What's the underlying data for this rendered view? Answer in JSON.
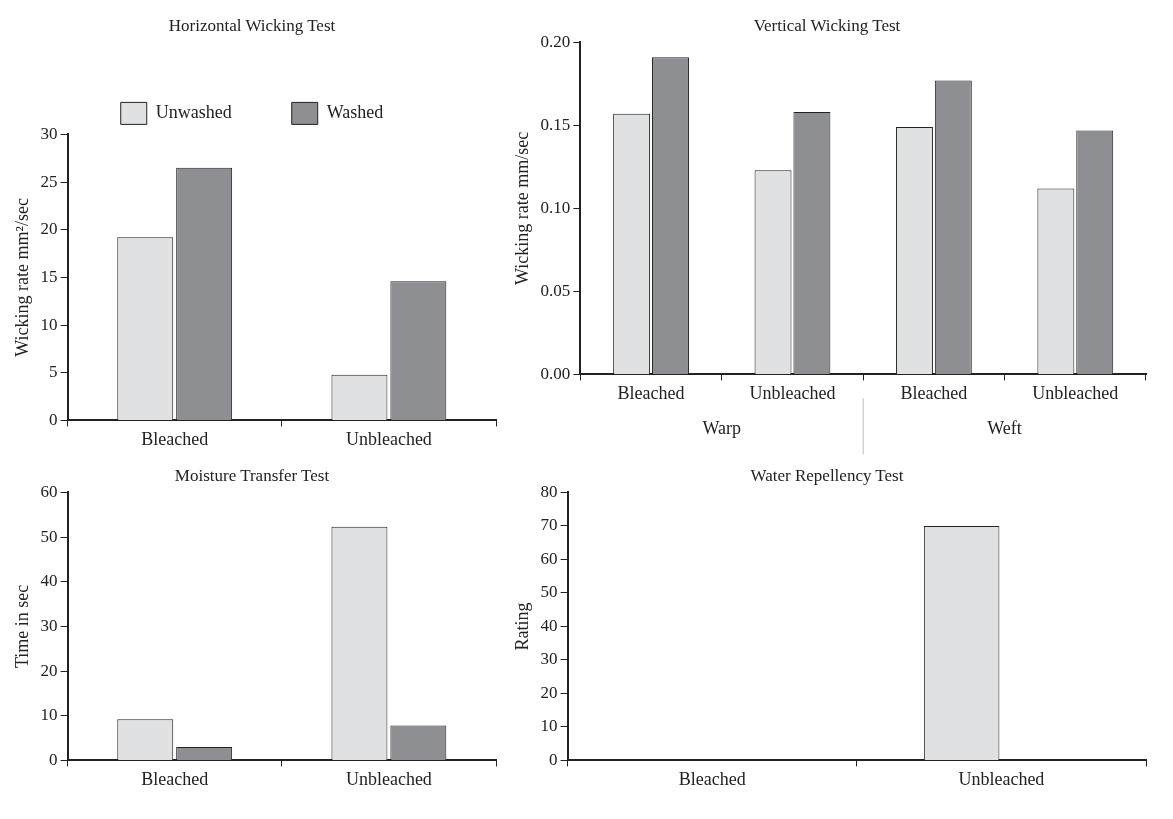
{
  "chart_data": [
    {
      "type": "bar",
      "title": "Horizontal Wicking Test",
      "ylabel": "Wicking rate mm²/sec",
      "categories": [
        "Bleached",
        "Unbleached"
      ],
      "series": [
        {
          "name": "Unwashed",
          "color": "#e0e1e3",
          "values": [
            19.2,
            4.8
          ]
        },
        {
          "name": "Washed",
          "color": "#8e8f93",
          "values": [
            26.5,
            14.6
          ]
        }
      ],
      "ylim": [
        0,
        30
      ],
      "yticks": [
        0,
        5,
        10,
        15,
        20,
        25,
        30
      ],
      "grid": false,
      "legend": "top"
    },
    {
      "type": "bar",
      "title": "Vertical Wicking Test",
      "ylabel": "Wicking rate mm/sec",
      "categories": [
        "Bleached",
        "Unbleached",
        "Bleached",
        "Unbleached"
      ],
      "series": [
        {
          "color": "#e0e1e3",
          "values": [
            0.157,
            0.123,
            0.149,
            0.112
          ]
        },
        {
          "color": "#8e8f93",
          "values": [
            0.191,
            0.158,
            0.177,
            0.147
          ]
        }
      ],
      "ylim": [
        0,
        0.2
      ],
      "yticks": [
        {
          "value": 0,
          "label": "0.00"
        },
        {
          "value": 0.05,
          "label": "0.05"
        },
        {
          "value": 0.1,
          "label": "0.10"
        },
        {
          "value": 0.15,
          "label": "0.15"
        },
        {
          "value": 0.2,
          "label": "0.20"
        }
      ],
      "annotations": [
        "Warp",
        "Weft"
      ],
      "grid": false
    },
    {
      "type": "bar",
      "title": "Moisture Transfer Test",
      "ylabel": "Time in sec",
      "categories": [
        "Bleached",
        "Unbleached"
      ],
      "series": [
        {
          "color": "#e0e1e3",
          "values": [
            9.2,
            52.3
          ]
        },
        {
          "color": "#8e8f93",
          "values": [
            3.0,
            7.8
          ]
        }
      ],
      "ylim": [
        0,
        60
      ],
      "yticks": [
        0,
        10,
        20,
        30,
        40,
        50,
        60
      ],
      "grid": false
    },
    {
      "type": "bar",
      "title": "Water Repellency Test",
      "ylabel": "Rating",
      "categories": [
        "Bleached",
        "Unbleached"
      ],
      "series": [
        {
          "color": "#e0e1e3",
          "values": [
            null,
            70
          ]
        },
        {
          "color": "#8e8f93",
          "values": [
            null,
            null
          ]
        }
      ],
      "ylim": [
        0,
        80
      ],
      "yticks": [
        0,
        10,
        20,
        30,
        40,
        50,
        60,
        70,
        80
      ],
      "grid": false
    }
  ]
}
